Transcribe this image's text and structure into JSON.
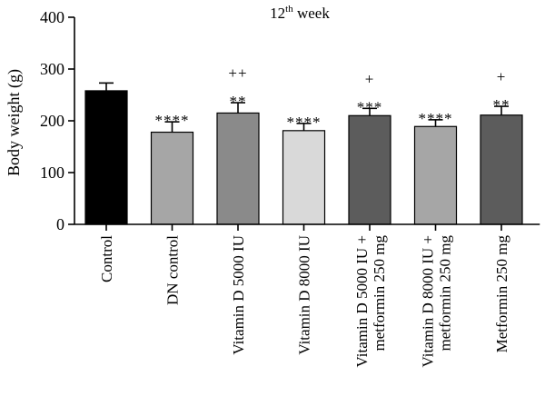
{
  "chart_data": {
    "type": "bar",
    "title": "12th week",
    "title_main": "12",
    "title_sup": "th",
    "title_rest": " week",
    "xlabel": "",
    "ylabel": "Body weight (g)",
    "ylim": [
      0,
      400
    ],
    "yticks": [
      0,
      100,
      200,
      300,
      400
    ],
    "grid": false,
    "categories": [
      [
        "Control"
      ],
      [
        "DN control"
      ],
      [
        "Vitamin D 5000 IU"
      ],
      [
        "Vitamin D 8000 IU"
      ],
      [
        "Vitamin D 5000 IU +",
        "metformin 250 mg"
      ],
      [
        "Vitamin D 8000 IU +",
        "metformin 250 mg"
      ],
      [
        "Metformin 250 mg"
      ]
    ],
    "values": [
      258,
      178,
      215,
      181,
      210,
      189,
      211
    ],
    "errors": [
      15,
      20,
      20,
      14,
      14,
      13,
      17
    ],
    "colors": [
      "#000000",
      "#a6a6a6",
      "#8a8a8a",
      "#d9d9d9",
      "#5c5c5c",
      "#a6a6a6",
      "#5c5c5c"
    ],
    "annotations": [
      [],
      [
        "****"
      ],
      [
        "++",
        "**"
      ],
      [
        "****"
      ],
      [
        "+",
        "***"
      ],
      [
        "****"
      ],
      [
        "+",
        "**"
      ]
    ]
  }
}
